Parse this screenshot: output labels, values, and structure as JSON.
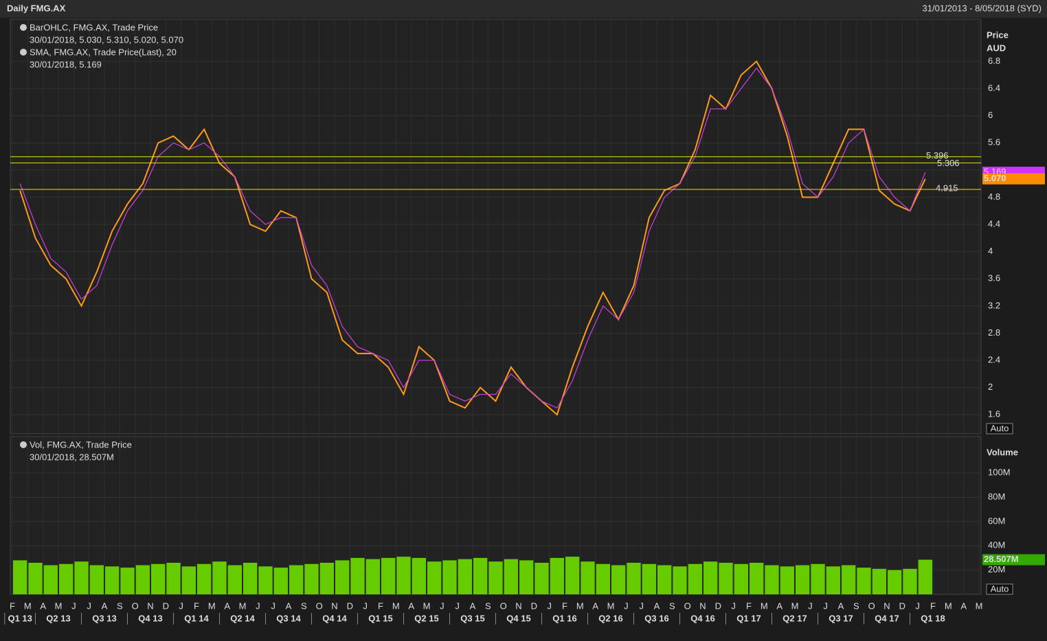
{
  "header": {
    "title": "Daily FMG.AX",
    "range": "31/01/2013 - 8/05/2018 (SYD)"
  },
  "x_axis": {
    "categories": [
      "F",
      "M",
      "A",
      "M",
      "J",
      "J",
      "A",
      "S",
      "O",
      "N",
      "D",
      "J",
      "F",
      "M",
      "A",
      "M",
      "J",
      "J",
      "A",
      "S",
      "O",
      "N",
      "D",
      "J",
      "F",
      "M",
      "A",
      "M",
      "J",
      "J",
      "A",
      "S",
      "O",
      "N",
      "D",
      "J",
      "F",
      "M",
      "A",
      "M",
      "J",
      "J",
      "A",
      "S",
      "O",
      "N",
      "D",
      "J",
      "F",
      "M",
      "A",
      "M",
      "J",
      "J",
      "A",
      "S",
      "O",
      "N",
      "D",
      "J",
      "F",
      "M",
      "A",
      "M"
    ],
    "quarters": [
      "Q1 13",
      "Q2 13",
      "Q3 13",
      "Q4 13",
      "Q1 14",
      "Q2 14",
      "Q3 14",
      "Q4 14",
      "Q1 15",
      "Q2 15",
      "Q3 15",
      "Q4 15",
      "Q1 16",
      "Q2 16",
      "Q3 16",
      "Q4 16",
      "Q1 17",
      "Q2 17",
      "Q3 17",
      "Q4 17",
      "Q1 18"
    ]
  },
  "chart_data": [
    {
      "type": "line",
      "y_label": [
        "Price",
        "AUD"
      ],
      "ylim": [
        1.32,
        7.42
      ],
      "yticks": [
        1.6,
        2,
        2.4,
        2.8,
        3.2,
        3.6,
        4,
        4.4,
        4.8,
        5.2,
        5.6,
        6,
        6.4,
        6.8
      ],
      "yticks_shown": [
        1.6,
        2,
        2.4,
        2.8,
        3.2,
        3.6,
        4,
        4.4,
        4.8,
        5.6,
        6,
        6.4,
        6.8
      ],
      "grid": true,
      "scale_button": "Auto",
      "series": [
        {
          "name": "BarOHLC, FMG.AX, Trade Price",
          "detail": "30/01/2018, 5.030, 5.310, 5.020, 5.070",
          "color": "#ff9a1a",
          "values": [
            4.9,
            4.2,
            3.8,
            3.6,
            3.2,
            3.7,
            4.3,
            4.7,
            5.0,
            5.6,
            5.7,
            5.5,
            5.8,
            5.3,
            5.1,
            4.4,
            4.3,
            4.6,
            4.5,
            3.6,
            3.4,
            2.7,
            2.5,
            2.5,
            2.3,
            1.9,
            2.6,
            2.4,
            1.8,
            1.7,
            2.0,
            1.8,
            2.3,
            2.0,
            1.8,
            1.6,
            2.3,
            2.9,
            3.4,
            3.0,
            3.5,
            4.5,
            4.9,
            5.0,
            5.5,
            6.3,
            6.1,
            6.6,
            6.8,
            6.4,
            5.7,
            4.8,
            4.8,
            5.3,
            5.8,
            5.8,
            4.9,
            4.7,
            4.6,
            5.07
          ]
        },
        {
          "name": "SMA, FMG.AX, Trade Price(Last),  20",
          "detail": "30/01/2018, 5.169",
          "color": "#d040e0",
          "values": [
            5.0,
            4.4,
            3.9,
            3.7,
            3.3,
            3.5,
            4.1,
            4.6,
            4.9,
            5.4,
            5.6,
            5.5,
            5.6,
            5.4,
            5.1,
            4.6,
            4.4,
            4.5,
            4.5,
            3.8,
            3.5,
            2.9,
            2.6,
            2.5,
            2.4,
            2.0,
            2.4,
            2.4,
            1.9,
            1.8,
            1.9,
            1.9,
            2.2,
            2.0,
            1.8,
            1.7,
            2.1,
            2.7,
            3.2,
            3.0,
            3.4,
            4.3,
            4.8,
            5.0,
            5.4,
            6.1,
            6.1,
            6.4,
            6.7,
            6.4,
            5.8,
            5.0,
            4.8,
            5.1,
            5.6,
            5.8,
            5.1,
            4.8,
            4.6,
            5.169
          ]
        }
      ],
      "hlines": [
        {
          "value": 5.396,
          "label": "5.396"
        },
        {
          "value": 5.306,
          "label": "5.306"
        },
        {
          "value": 4.915,
          "label": "4.915"
        }
      ],
      "tags": [
        {
          "value": 5.169,
          "label": "5.169",
          "color": "#cc33ff"
        },
        {
          "value": 5.07,
          "label": "5.070",
          "color": "#ff8c00"
        }
      ]
    },
    {
      "type": "bar",
      "y_label": "Volume",
      "ylim": [
        0,
        130
      ],
      "yticks": [
        {
          "value": 20,
          "label": "20M"
        },
        {
          "value": 40,
          "label": "40M"
        },
        {
          "value": 60,
          "label": "60M"
        },
        {
          "value": 80,
          "label": "80M"
        },
        {
          "value": 100,
          "label": "100M"
        }
      ],
      "grid": true,
      "scale_button": "Auto",
      "series": [
        {
          "name": "Vol, FMG.AX, Trade Price",
          "detail": "30/01/2018, 28.507M",
          "color": "#66cc00",
          "values": [
            28,
            26,
            24,
            25,
            27,
            24,
            23,
            22,
            24,
            25,
            26,
            23,
            25,
            27,
            24,
            26,
            23,
            22,
            24,
            25,
            26,
            28,
            30,
            29,
            30,
            31,
            30,
            27,
            28,
            29,
            30,
            27,
            29,
            28,
            26,
            30,
            31,
            27,
            25,
            24,
            26,
            25,
            24,
            23,
            25,
            27,
            26,
            25,
            26,
            24,
            23,
            24,
            25,
            23,
            24,
            22,
            21,
            20,
            21,
            28.507
          ]
        }
      ],
      "tags": [
        {
          "value": 28.507,
          "label": "28.507M",
          "color": "#33aa00"
        }
      ]
    }
  ]
}
